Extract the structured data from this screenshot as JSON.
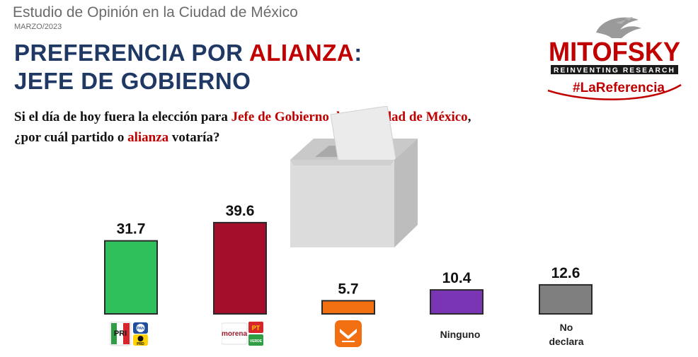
{
  "header": {
    "study_title": "Estudio de Opinión en la Ciudad de México",
    "date": "MARZO/2023",
    "headline_part1": "PREFERENCIA POR ",
    "headline_accent": "ALIANZA",
    "headline_colon": ":",
    "headline_line2": "JEFE DE GOBIERNO"
  },
  "question": {
    "line1_pre": "Si el día de hoy fuera la elección para ",
    "line1_accent": "Jefe de Gobierno de la Ciudad de México",
    "line1_post": ",",
    "line2_pre": "¿por cuál partido o ",
    "line2_accent": "alianza",
    "line2_post": " votaría?"
  },
  "logo": {
    "brand": "MITOFSKY",
    "tagline": "REINVENTING RESEARCH",
    "hashtag": "#LaReferencia"
  },
  "colors": {
    "title_blue": "#1f3864",
    "accent_red": "#c00000",
    "pri_alliance": "#2fbf5b",
    "morena_alliance": "#a50e2a",
    "mc": "#f26f12",
    "ninguno": "#7a35b5",
    "no_declara": "#7f7f7f"
  },
  "chart_data": {
    "type": "bar",
    "categories": [
      "PRI-PAN-PRD",
      "MORENA-PT-PVEM",
      "MC",
      "Ninguno",
      "No declara"
    ],
    "values": [
      31.7,
      39.6,
      5.7,
      10.4,
      12.6
    ],
    "value_labels": [
      "31.7",
      "39.6",
      "5.7",
      "10.4",
      "12.6"
    ],
    "category_text": [
      "",
      "",
      "",
      "Ninguno",
      "No declara"
    ],
    "category_icons": [
      "pri-pan-prd-logos",
      "morena-pt-pvem-logos",
      "movimiento-ciudadano-logo",
      "",
      ""
    ],
    "colors": [
      "#2fbf5b",
      "#a50e2a",
      "#f26f12",
      "#7a35b5",
      "#7f7f7f"
    ],
    "ylim": [
      0,
      40
    ]
  },
  "icon_text": {
    "pri": "PRI",
    "pan": "PAN",
    "prd": "PRD",
    "morena": "morena",
    "pt": "PT",
    "pvem": "VERDE"
  }
}
